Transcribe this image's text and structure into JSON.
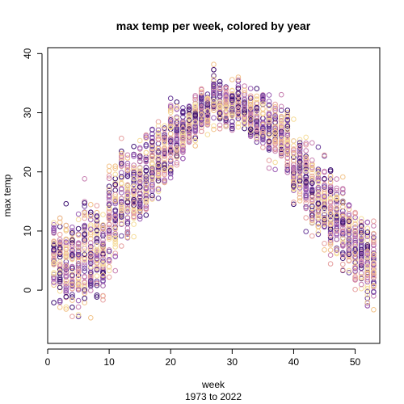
{
  "chart_data": {
    "type": "scatter",
    "title": "max temp per week, colored by year",
    "xlabel": "week",
    "subtitle": "1973 to 2022",
    "ylabel": "max temp",
    "xlim": [
      0,
      54
    ],
    "ylim": [
      -9,
      41
    ],
    "x_ticks": [
      0,
      10,
      20,
      30,
      40,
      50
    ],
    "y_ticks": [
      0,
      10,
      20,
      30,
      40
    ],
    "grid": false,
    "year_range": [
      1973,
      2022
    ],
    "palette": [
      "#3b0f70",
      "#6a3d9a",
      "#9c5fb5",
      "#c77fb0",
      "#e6a0a0",
      "#f2c38a",
      "#f5dc9a"
    ],
    "weekly_profile": [
      {
        "week": 1,
        "min": -4.5,
        "max": 16
      },
      {
        "week": 2,
        "min": -6.5,
        "max": 16
      },
      {
        "week": 3,
        "min": -6.8,
        "max": 15.5
      },
      {
        "week": 4,
        "min": -5.5,
        "max": 14
      },
      {
        "week": 5,
        "min": -6.8,
        "max": 15.5
      },
      {
        "week": 6,
        "min": -6.0,
        "max": 20.5
      },
      {
        "week": 7,
        "min": -6.5,
        "max": 17
      },
      {
        "week": 8,
        "min": -4.5,
        "max": 18
      },
      {
        "week": 9,
        "min": -5.0,
        "max": 16
      },
      {
        "week": 10,
        "min": -2.0,
        "max": 25.5
      },
      {
        "week": 11,
        "min": 1.0,
        "max": 25
      },
      {
        "week": 12,
        "min": 2.0,
        "max": 29.5
      },
      {
        "week": 13,
        "min": 3.0,
        "max": 25.5
      },
      {
        "week": 14,
        "min": 5.0,
        "max": 26
      },
      {
        "week": 15,
        "min": 7.5,
        "max": 28.5
      },
      {
        "week": 16,
        "min": 9.0,
        "max": 30
      },
      {
        "week": 17,
        "min": 12.0,
        "max": 30
      },
      {
        "week": 18,
        "min": 13.0,
        "max": 31.5
      },
      {
        "week": 19,
        "min": 15.0,
        "max": 31.5
      },
      {
        "week": 20,
        "min": 17.5,
        "max": 34
      },
      {
        "week": 21,
        "min": 19.0,
        "max": 33
      },
      {
        "week": 22,
        "min": 20.0,
        "max": 33.5
      },
      {
        "week": 23,
        "min": 22.0,
        "max": 34
      },
      {
        "week": 24,
        "min": 22.5,
        "max": 35.5
      },
      {
        "week": 25,
        "min": 24.5,
        "max": 36
      },
      {
        "week": 26,
        "min": 25.5,
        "max": 35.5
      },
      {
        "week": 27,
        "min": 26.5,
        "max": 39.5
      },
      {
        "week": 28,
        "min": 26.0,
        "max": 37.5
      },
      {
        "week": 29,
        "min": 26.5,
        "max": 36
      },
      {
        "week": 30,
        "min": 26.0,
        "max": 36
      },
      {
        "week": 31,
        "min": 25.5,
        "max": 37.5
      },
      {
        "week": 32,
        "min": 25.0,
        "max": 36
      },
      {
        "week": 33,
        "min": 24.0,
        "max": 35.5
      },
      {
        "week": 34,
        "min": 23.0,
        "max": 35
      },
      {
        "week": 35,
        "min": 22.0,
        "max": 36.5
      },
      {
        "week": 36,
        "min": 20.0,
        "max": 35
      },
      {
        "week": 37,
        "min": 19.0,
        "max": 34.5
      },
      {
        "week": 38,
        "min": 17.5,
        "max": 33.5
      },
      {
        "week": 39,
        "min": 16.0,
        "max": 33
      },
      {
        "week": 40,
        "min": 12.0,
        "max": 30.5
      },
      {
        "week": 41,
        "min": 11.5,
        "max": 29
      },
      {
        "week": 42,
        "min": 9.0,
        "max": 28
      },
      {
        "week": 43,
        "min": 7.5,
        "max": 27
      },
      {
        "week": 44,
        "min": 5.5,
        "max": 26
      },
      {
        "week": 45,
        "min": 4.0,
        "max": 25
      },
      {
        "week": 46,
        "min": 3.0,
        "max": 24
      },
      {
        "week": 47,
        "min": 1.5,
        "max": 22
      },
      {
        "week": 48,
        "min": 0.0,
        "max": 21
      },
      {
        "week": 49,
        "min": -1.0,
        "max": 19.5
      },
      {
        "week": 50,
        "min": -2.5,
        "max": 18
      },
      {
        "week": 51,
        "min": -3.0,
        "max": 17.5
      },
      {
        "week": 52,
        "min": -7.0,
        "max": 16
      },
      {
        "week": 53,
        "min": -5.5,
        "max": 14
      }
    ]
  }
}
